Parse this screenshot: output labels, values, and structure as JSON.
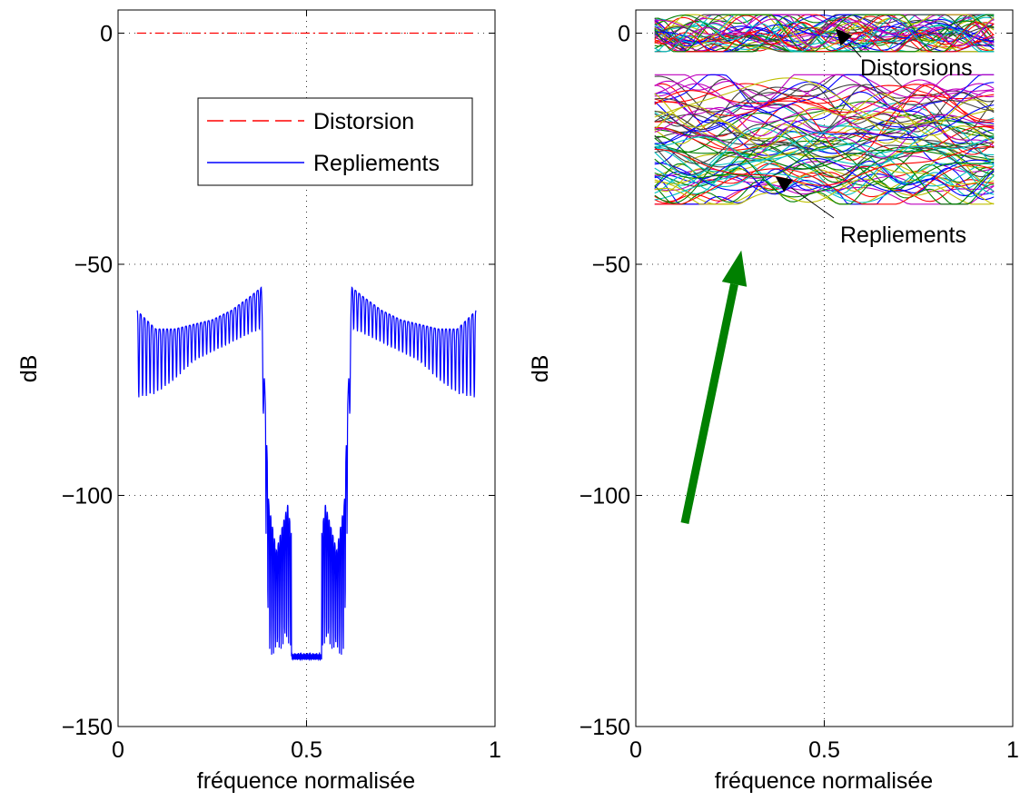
{
  "chart_data": [
    {
      "type": "line",
      "xlabel": "fréquence normalisée",
      "ylabel": "dB",
      "xlim": [
        0,
        1
      ],
      "ylim": [
        -150,
        5
      ],
      "x_ticks": [
        "0",
        "0.5",
        "1"
      ],
      "y_ticks": [
        "0",
        "−50",
        "−100",
        "−150"
      ],
      "grid": true,
      "legend_position": "upper-right",
      "legend": [
        "Distorsion",
        "Repliements"
      ],
      "series": [
        {
          "name": "Distorsion",
          "color": "#ff0000",
          "style": "dash-dot",
          "x": [
            0.05,
            0.95
          ],
          "y": [
            0,
            0
          ]
        },
        {
          "name": "Repliements",
          "color": "#0000ff",
          "style": "solid",
          "x": [
            0.05,
            0.1,
            0.15,
            0.2,
            0.25,
            0.3,
            0.35,
            0.38,
            0.4,
            0.42,
            0.45,
            0.5,
            0.55,
            0.58,
            0.6,
            0.62,
            0.65,
            0.7,
            0.75,
            0.8,
            0.85,
            0.9,
            0.95
          ],
          "y_top": [
            -60,
            -64,
            -64,
            -63,
            -62,
            -60,
            -57,
            -55,
            -102,
            -112,
            -102,
            -134,
            -102,
            -112,
            -102,
            -55,
            -57,
            -60,
            -62,
            -63,
            -64,
            -64,
            -60
          ],
          "y_bottom": [
            -79,
            -78,
            -75,
            -71,
            -69,
            -67,
            -65,
            -64,
            -135,
            -134,
            -132,
            -136,
            -132,
            -134,
            -135,
            -64,
            -65,
            -67,
            -69,
            -71,
            -75,
            -78,
            -79
          ]
        }
      ]
    },
    {
      "type": "line",
      "xlabel": "fréquence normalisée",
      "ylabel": "dB",
      "xlim": [
        0,
        1
      ],
      "ylim": [
        -150,
        5
      ],
      "x_ticks": [
        "0",
        "0.5",
        "1"
      ],
      "y_ticks": [
        "0",
        "−50",
        "−100",
        "−150"
      ],
      "grid": true,
      "annotations": [
        {
          "text": "Distorsions",
          "arrow_to": [
            0.53,
            1
          ]
        },
        {
          "text": "Repliements",
          "arrow_to": [
            0.37,
            -31
          ]
        }
      ],
      "band_distortions_db": [
        -2,
        2
      ],
      "band_repliements_db": [
        -39,
        -9
      ],
      "series_colors": [
        "#0000ff",
        "#008000",
        "#ff0000",
        "#00bfbf",
        "#bf00bf",
        "#bfbf00",
        "#404040"
      ],
      "green_arrow": {
        "color": "#008000",
        "from": [
          0.13,
          -106
        ],
        "to": [
          0.28,
          -47
        ]
      }
    }
  ]
}
